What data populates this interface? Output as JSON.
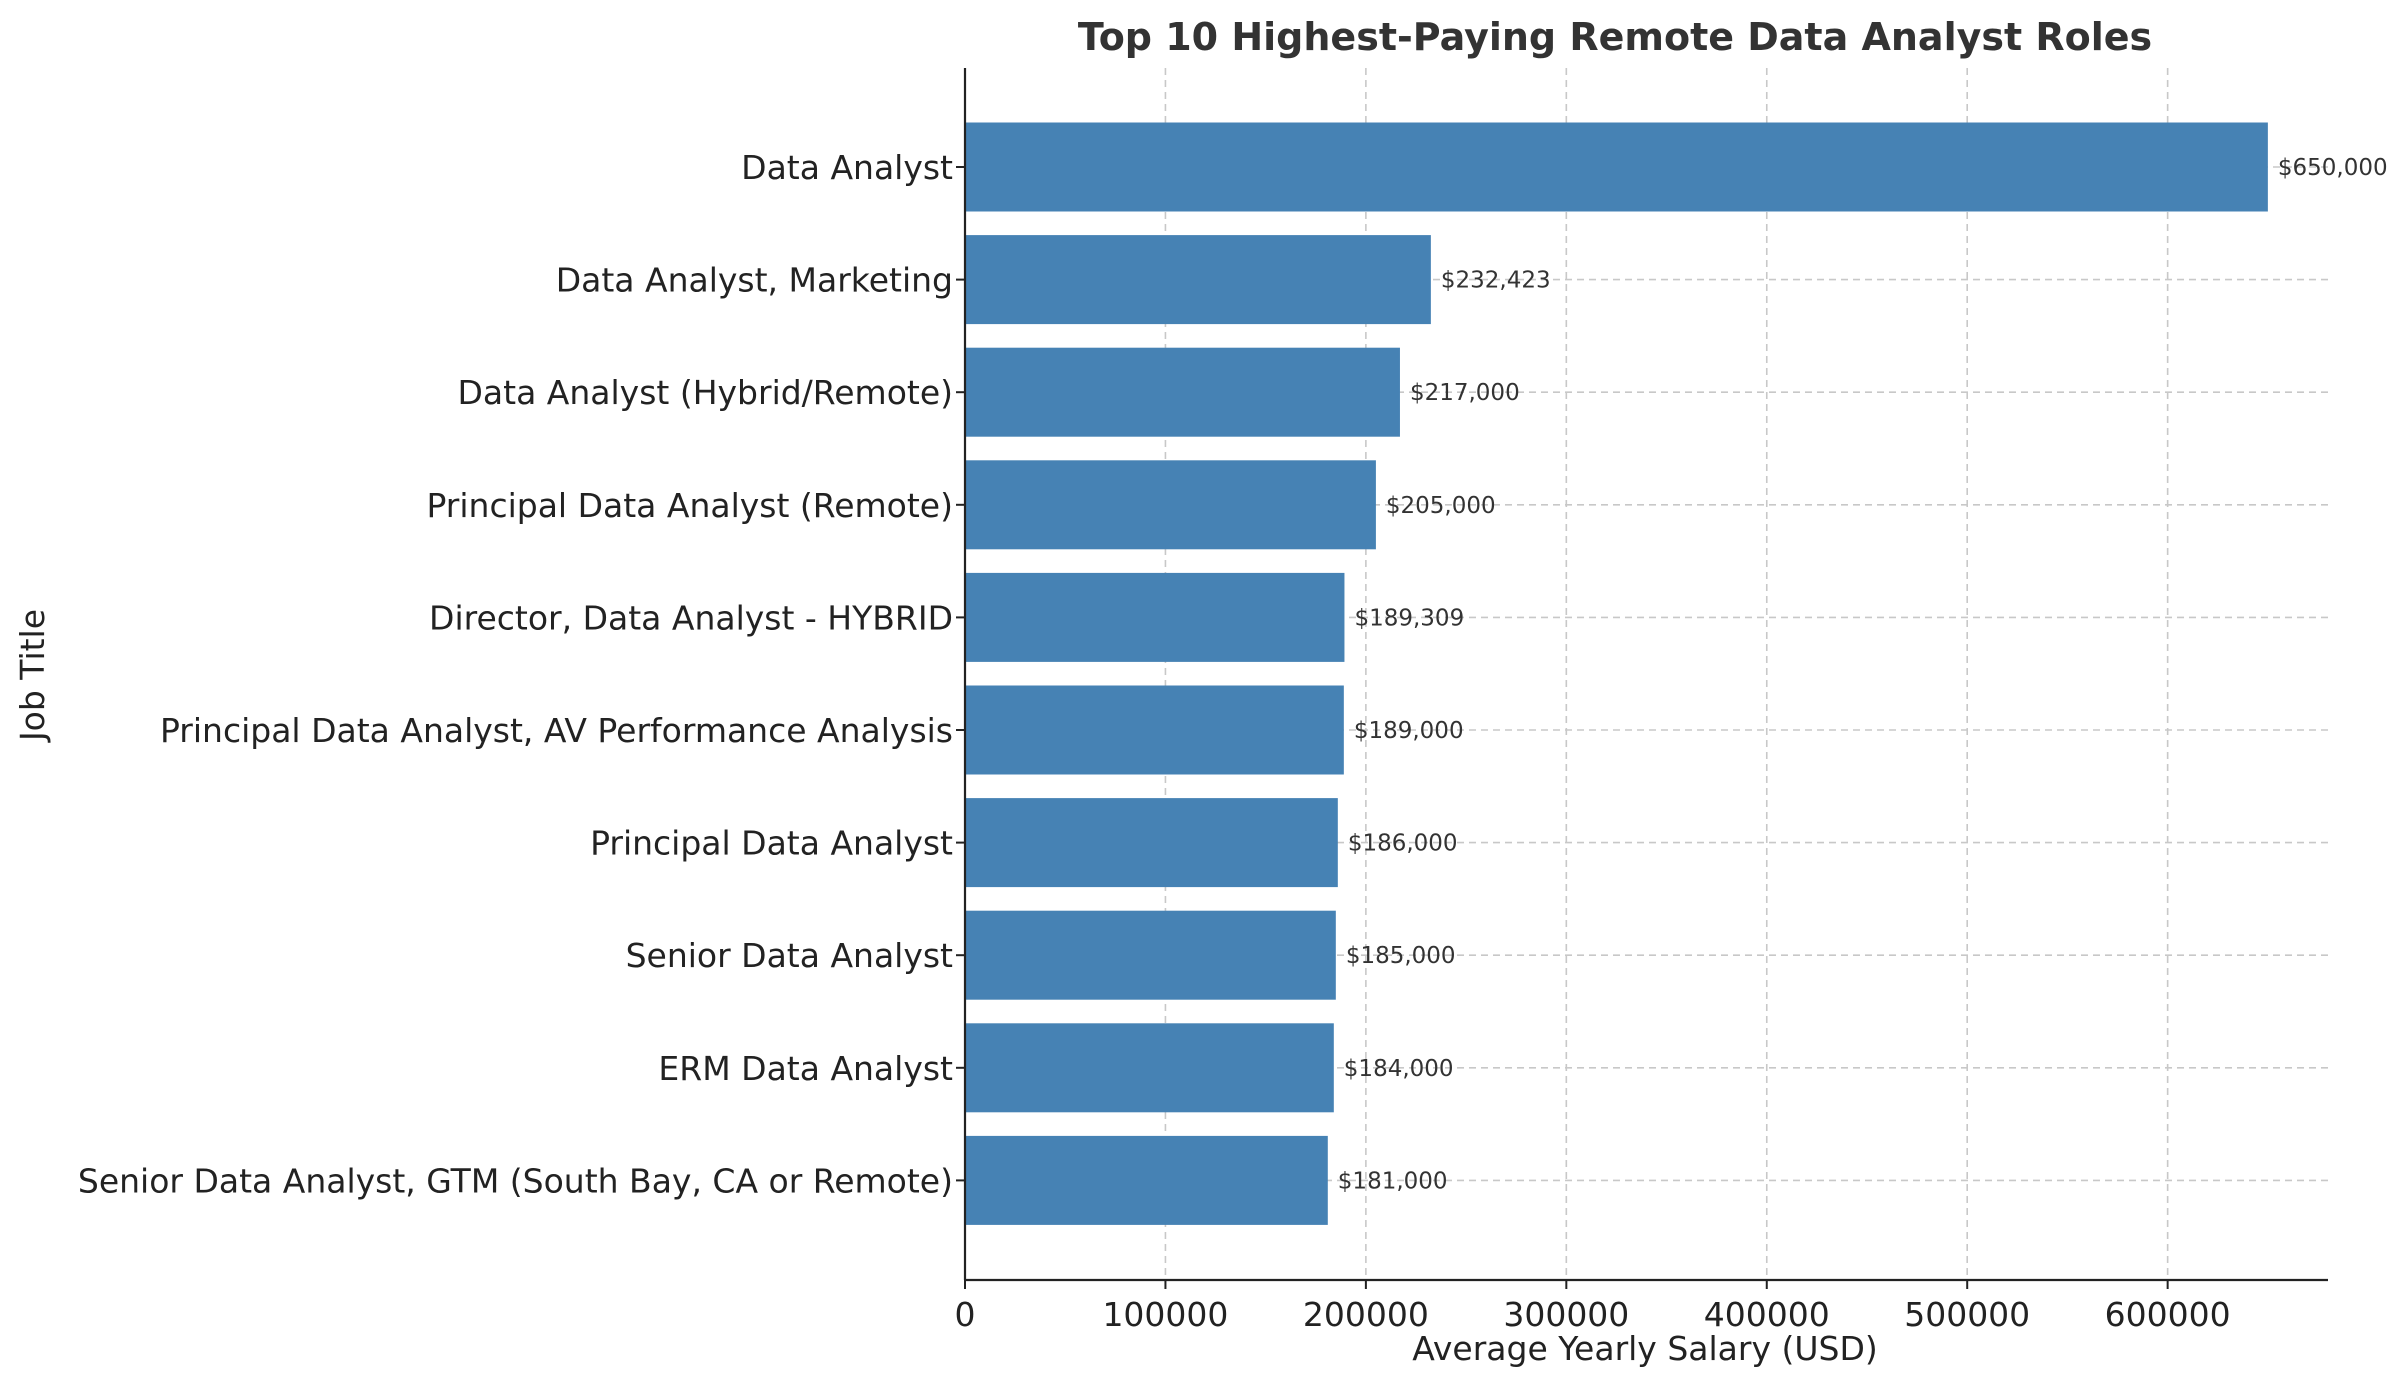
{
  "chart_data": {
    "type": "bar",
    "orientation": "horizontal",
    "title": "Top 10 Highest-Paying Remote Data Analyst Roles",
    "xlabel": "Average Yearly Salary (USD)",
    "ylabel": "Job Title",
    "xlim": [
      0,
      680000
    ],
    "xticks": [
      0,
      100000,
      200000,
      300000,
      400000,
      500000,
      600000
    ],
    "xtick_labels": [
      "0",
      "100000",
      "200000",
      "300000",
      "400000",
      "500000",
      "600000"
    ],
    "grid": true,
    "bar_color": "#4682b4",
    "categories": [
      "Data Analyst",
      "Data Analyst, Marketing",
      "Data Analyst (Hybrid/Remote)",
      "Principal Data Analyst (Remote)",
      "Director, Data Analyst - HYBRID",
      "Principal Data Analyst, AV Performance Analysis",
      "Principal Data Analyst",
      "Senior Data Analyst",
      "ERM Data Analyst",
      "Senior Data Analyst, GTM (South Bay, CA or Remote)"
    ],
    "values": [
      650000,
      232423,
      217000,
      205000,
      189309,
      189000,
      186000,
      185000,
      184000,
      181000
    ],
    "value_labels": [
      "$650,000",
      "$232,423",
      "$217,000",
      "$205,000",
      "$189,309",
      "$189,000",
      "$186,000",
      "$185,000",
      "$184,000",
      "$181,000"
    ]
  }
}
